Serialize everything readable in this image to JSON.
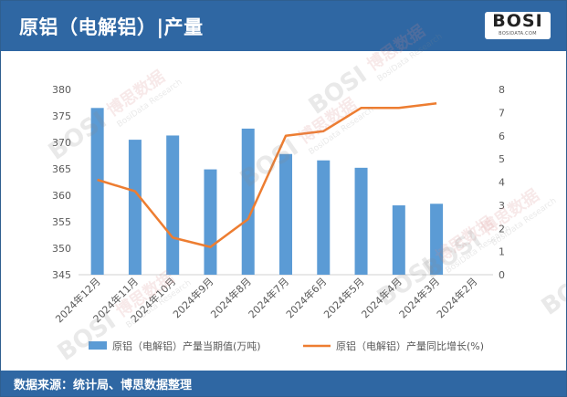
{
  "header": {
    "title": "原铝（电解铝）|产量",
    "logo_text": "BOSI",
    "logo_subtext": "BOSIDATA.COM"
  },
  "watermark": {
    "brand": "BOSI",
    "cn": "博思数据",
    "en": "BosiData Research"
  },
  "footer": {
    "source": "数据来源：统计局、博思数据整理"
  },
  "colors": {
    "header_bg": "#2f67a3",
    "bar": "#5b9bd5",
    "line": "#ed7d31",
    "axis_text": "#595959"
  },
  "chart_data": {
    "type": "bar",
    "categories": [
      "2024年12月",
      "2024年11月",
      "2024年10月",
      "2024年9月",
      "2024年8月",
      "2024年7月",
      "2024年6月",
      "2024年5月",
      "2024年4月",
      "2024年3月",
      "2024年2月"
    ],
    "series": [
      {
        "name": "原铝（电解铝）产量当期值(万吨)",
        "type": "bar",
        "axis": "left",
        "values": [
          376.5,
          370.5,
          371.3,
          364.9,
          372.6,
          367.8,
          366.6,
          365.2,
          358.1,
          358.4,
          null
        ]
      },
      {
        "name": "原铝（电解铝）产量同比增长(%)",
        "type": "line",
        "axis": "right",
        "values": [
          4.1,
          3.6,
          1.6,
          1.2,
          2.4,
          6.0,
          6.2,
          7.2,
          7.2,
          7.4,
          null
        ]
      }
    ],
    "y_left": {
      "min": 345,
      "max": 380,
      "ticks": [
        "345",
        "350",
        "355",
        "360",
        "365",
        "370",
        "375",
        "380"
      ]
    },
    "y_right": {
      "min": 0,
      "max": 8,
      "ticks": [
        "0",
        "1",
        "2",
        "3",
        "4",
        "5",
        "6",
        "7",
        "8"
      ]
    },
    "grid": false,
    "legend_position": "bottom"
  }
}
